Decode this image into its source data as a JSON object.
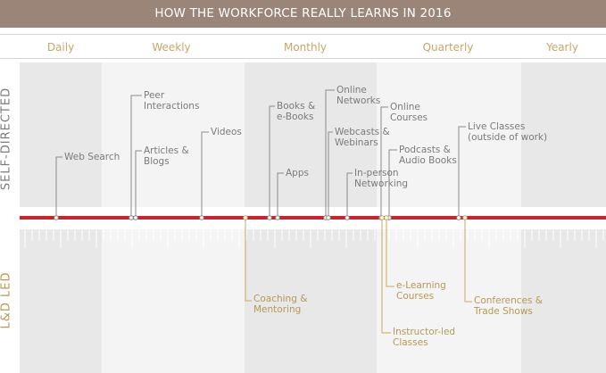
{
  "title": "HOW THE WORKFORCE REALLY LEARNS IN 2016",
  "frequencies": [
    "Daily",
    "Weekly",
    "Monthly",
    "Quarterly",
    "Yearly"
  ],
  "side_labels": {
    "top": "SELF-DIRECTED",
    "bottom": "L&D LED"
  },
  "colors": {
    "title_bg": "#9b8578",
    "timeline": "#cc2229",
    "top_text": "#7b7b7b",
    "bottom_text": "#b59a55",
    "shade": "#e9e9e9",
    "shade_light": "#f4f4f4"
  },
  "self_directed": [
    {
      "lines": [
        "Web Search"
      ]
    },
    {
      "lines": [
        "Peer",
        "Interactions"
      ]
    },
    {
      "lines": [
        "Articles &",
        "Blogs"
      ]
    },
    {
      "lines": [
        "Videos"
      ]
    },
    {
      "lines": [
        "Books &",
        "e-Books"
      ]
    },
    {
      "lines": [
        "Apps"
      ]
    },
    {
      "lines": [
        "Online",
        "Networks"
      ]
    },
    {
      "lines": [
        "Webcasts &",
        "Webinars"
      ]
    },
    {
      "lines": [
        "In-person",
        "Networking"
      ]
    },
    {
      "lines": [
        "Online",
        "Courses"
      ]
    },
    {
      "lines": [
        "Podcasts &",
        "Audio Books"
      ]
    },
    {
      "lines": [
        "Live Classes",
        "(outside of work)"
      ]
    }
  ],
  "ld_led": [
    {
      "lines": [
        "Coaching &",
        "Mentoring"
      ]
    },
    {
      "lines": [
        "e-Learning",
        "Courses"
      ]
    },
    {
      "lines": [
        "Instructor-led",
        "Classes"
      ]
    },
    {
      "lines": [
        "Conferences &",
        "Trade Shows"
      ]
    }
  ]
}
